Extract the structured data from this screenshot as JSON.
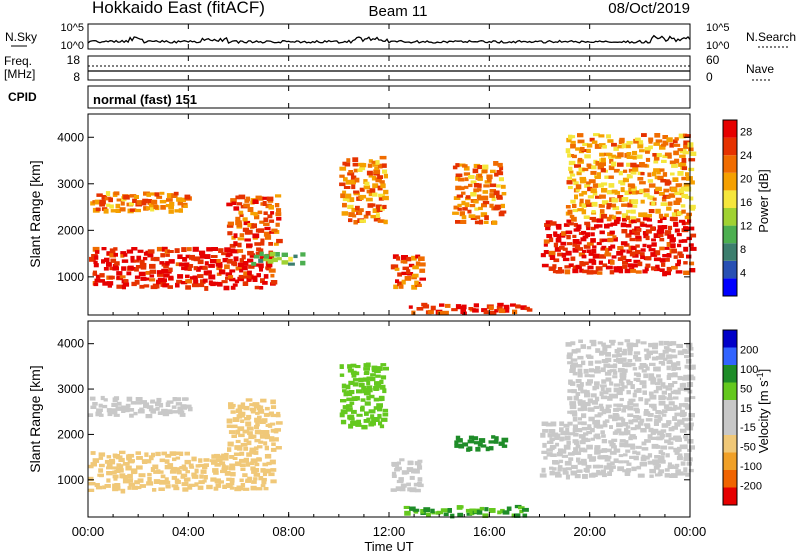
{
  "header": {
    "station": "Hokkaido East (fitACF)",
    "beam": "Beam 11",
    "date": "08/Oct/2019"
  },
  "aux_panels": {
    "nsky_label": "N.Sky",
    "nsearch_label": "N.Search",
    "noise_ticks": [
      "10^5",
      "10^0"
    ],
    "freq_label": "Freq.",
    "freq_unit": "[MHz]",
    "freq_ticks": [
      "18",
      "8"
    ],
    "nave_label": "Nave",
    "nave_ticks": [
      "60",
      "0"
    ],
    "cpid_label": "CPID",
    "cpid_value": "normal (fast) 151"
  },
  "x_axis": {
    "label": "Time UT",
    "ticks": [
      "00:00",
      "04:00",
      "08:00",
      "12:00",
      "16:00",
      "20:00",
      "00:00"
    ]
  },
  "colors": {
    "power_scale": [
      "#0000ff",
      "#2850b4",
      "#3c7e6e",
      "#4caf50",
      "#a0d232",
      "#f5e63c",
      "#f5a000",
      "#f06c00",
      "#e63200",
      "#e60000"
    ],
    "velocity_scale": [
      "#0000c8",
      "#3264ff",
      "#1e8c28",
      "#64c81e",
      "#c8c8c8",
      "#c8c8c8",
      "#f0c878",
      "#f0a028",
      "#f06400",
      "#e60000"
    ]
  },
  "chart_data": [
    {
      "type": "heatmap",
      "title": "",
      "xlabel": "Time UT",
      "ylabel": "Slant Range [km]",
      "xlim_hours": [
        0,
        24
      ],
      "ylim_km": [
        180,
        4500
      ],
      "yticks": [
        1000,
        2000,
        3000,
        4000
      ],
      "colorbar": {
        "label": "Power [dB]",
        "range": [
          0,
          30
        ],
        "ticks": [
          4,
          8,
          12,
          16,
          20,
          24,
          28
        ]
      },
      "echo_regions": [
        {
          "t0": 0.0,
          "t1": 7.3,
          "r0": 800,
          "r1": 1650,
          "value": 28,
          "note": "strong band rising with time"
        },
        {
          "t0": 0.0,
          "t1": 4.0,
          "r0": 2450,
          "r1": 2850,
          "value": 22
        },
        {
          "t0": 5.5,
          "t1": 7.5,
          "r0": 1700,
          "r1": 2800,
          "value": 24
        },
        {
          "t0": 6.5,
          "t1": 8.5,
          "r0": 1300,
          "r1": 1550,
          "value": 12
        },
        {
          "t0": 10.0,
          "t1": 11.8,
          "r0": 2200,
          "r1": 3600,
          "value": 22
        },
        {
          "t0": 12.0,
          "t1": 13.3,
          "r0": 800,
          "r1": 1500,
          "value": 24
        },
        {
          "t0": 12.5,
          "t1": 17.5,
          "r0": 250,
          "r1": 450,
          "value": 26
        },
        {
          "t0": 14.5,
          "t1": 16.5,
          "r0": 2200,
          "r1": 3500,
          "value": 22
        },
        {
          "t0": 18.0,
          "t1": 24.0,
          "r0": 1100,
          "r1": 2300,
          "value": 28
        },
        {
          "t0": 19.0,
          "t1": 24.0,
          "r0": 2300,
          "r1": 4100,
          "value": 20
        }
      ]
    },
    {
      "type": "heatmap",
      "title": "",
      "xlabel": "Time UT",
      "ylabel": "Slant Range [km]",
      "xlim_hours": [
        0,
        24
      ],
      "ylim_km": [
        180,
        4500
      ],
      "yticks": [
        1000,
        2000,
        3000,
        4000
      ],
      "colorbar": {
        "label": "Velocity [m s-1]",
        "ticks": [
          200,
          100,
          50,
          15,
          -15,
          -50,
          -100,
          -200
        ]
      },
      "echo_regions": [
        {
          "t0": 0.0,
          "t1": 7.3,
          "r0": 800,
          "r1": 1650,
          "value": -20
        },
        {
          "t0": 0.0,
          "t1": 4.0,
          "r0": 2450,
          "r1": 2850,
          "value": -10
        },
        {
          "t0": 5.5,
          "t1": 7.5,
          "r0": 1700,
          "r1": 2800,
          "value": -30
        },
        {
          "t0": 10.0,
          "t1": 11.8,
          "r0": 2200,
          "r1": 3600,
          "value": 40
        },
        {
          "t0": 12.0,
          "t1": 13.3,
          "r0": 800,
          "r1": 1500,
          "value": 0
        },
        {
          "t0": 12.5,
          "t1": 17.5,
          "r0": 250,
          "r1": 450,
          "value": 50
        },
        {
          "t0": 14.5,
          "t1": 16.5,
          "r0": 1700,
          "r1": 2000,
          "value": 60
        },
        {
          "t0": 18.0,
          "t1": 24.0,
          "r0": 1100,
          "r1": 2300,
          "value": 0
        },
        {
          "t0": 19.0,
          "t1": 24.0,
          "r0": 2300,
          "r1": 4100,
          "value": -10
        }
      ]
    }
  ]
}
